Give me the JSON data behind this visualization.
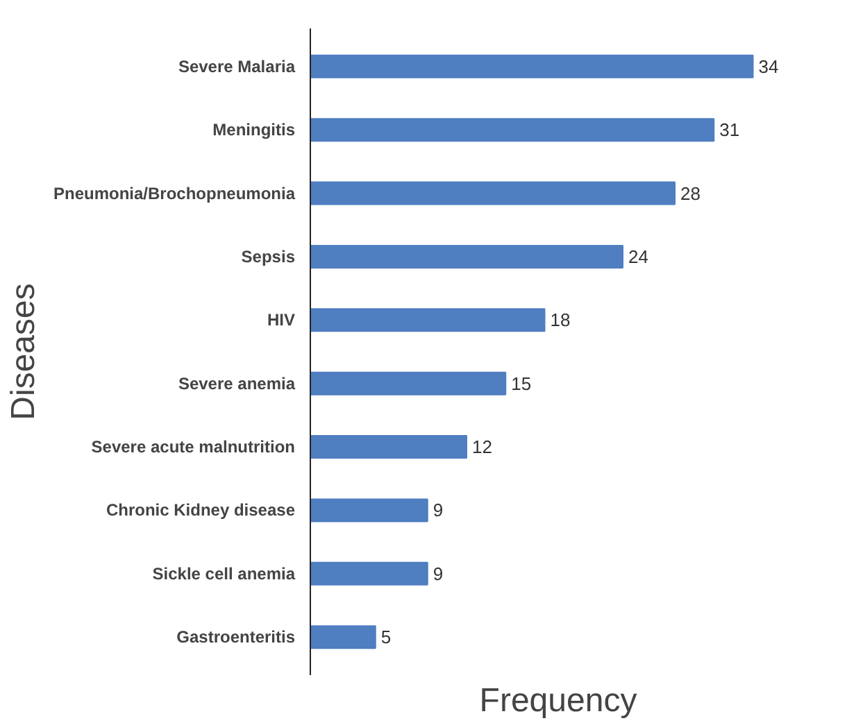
{
  "chart_data": {
    "type": "bar",
    "orientation": "horizontal",
    "xlabel": "Frequency",
    "ylabel": "Diseases",
    "categories": [
      "Severe Malaria",
      "Meningitis",
      "Pneumonia/Brochopneumonia",
      "Sepsis",
      "HIV",
      "Severe anemia",
      "Severe acute malnutrition",
      "Chronic Kidney disease",
      "Sickle cell anemia",
      "Gastroenteritis"
    ],
    "values": [
      34,
      31,
      28,
      24,
      18,
      15,
      12,
      9,
      9,
      5
    ],
    "color": "#4f7ec1",
    "data_labels": true,
    "grid": false
  }
}
